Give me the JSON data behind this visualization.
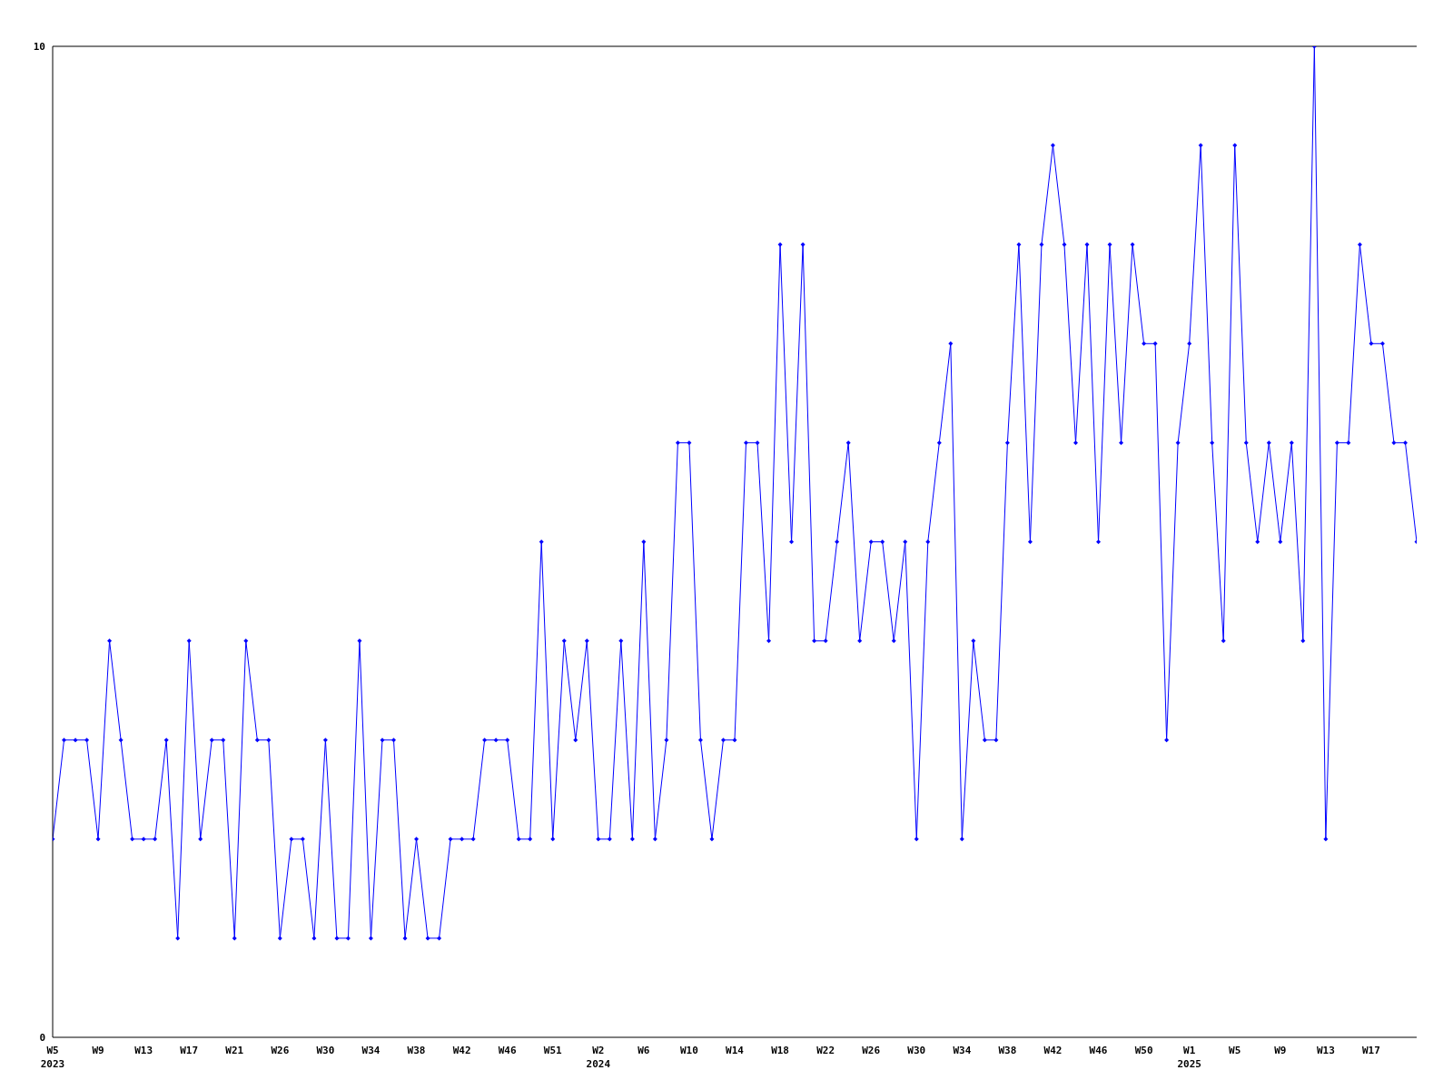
{
  "chart_data": {
    "type": "line",
    "color": "#0000ff",
    "marker": "diamond",
    "line_style": "solid",
    "grid": false,
    "legend": false,
    "ylim": [
      0,
      10
    ],
    "yticks": [
      0,
      10
    ],
    "categories": [
      "W5\n2023",
      null,
      null,
      null,
      "W9",
      null,
      null,
      null,
      "W13",
      null,
      null,
      null,
      "W17",
      null,
      null,
      null,
      "W21",
      null,
      null,
      null,
      "W26",
      null,
      null,
      null,
      "W30",
      null,
      null,
      null,
      "W34",
      null,
      null,
      null,
      "W38",
      null,
      null,
      null,
      "W42",
      null,
      null,
      null,
      "W46",
      null,
      null,
      null,
      "W51",
      null,
      null,
      null,
      "W2\n2024",
      null,
      null,
      null,
      "W6",
      null,
      null,
      null,
      "W10",
      null,
      null,
      null,
      "W14",
      null,
      null,
      null,
      "W18",
      null,
      null,
      null,
      "W22",
      null,
      null,
      null,
      "W26",
      null,
      null,
      null,
      "W30",
      null,
      null,
      null,
      "W34",
      null,
      null,
      null,
      "W38",
      null,
      null,
      null,
      "W42",
      null,
      null,
      null,
      "W46",
      null,
      null,
      null,
      "W50",
      null,
      null,
      null,
      "W1\n2025",
      null,
      null,
      null,
      "W5",
      null,
      null,
      null,
      "W9",
      null,
      null,
      null,
      "W13",
      null,
      null,
      null,
      "W17",
      null,
      null,
      null,
      null
    ],
    "values": [
      2,
      3,
      3,
      3,
      2,
      4,
      3,
      2,
      2,
      2,
      3,
      1,
      4,
      2,
      3,
      3,
      1,
      4,
      3,
      3,
      1,
      2,
      2,
      1,
      3,
      1,
      1,
      4,
      1,
      3,
      3,
      1,
      2,
      1,
      1,
      2,
      2,
      2,
      3,
      3,
      3,
      2,
      2,
      5,
      2,
      4,
      3,
      4,
      2,
      2,
      4,
      2,
      5,
      2,
      3,
      6,
      6,
      3,
      2,
      3,
      3,
      6,
      6,
      4,
      8,
      5,
      8,
      4,
      4,
      5,
      6,
      4,
      5,
      5,
      4,
      5,
      2,
      5,
      6,
      7,
      2,
      4,
      3,
      3,
      6,
      8,
      5,
      8,
      9,
      8,
      6,
      8,
      5,
      8,
      6,
      8,
      7,
      7,
      3,
      6,
      7,
      9,
      6,
      4,
      9,
      6,
      5,
      6,
      5,
      6,
      4,
      10,
      2,
      6,
      6,
      8,
      7,
      7,
      6,
      6,
      5
    ]
  }
}
